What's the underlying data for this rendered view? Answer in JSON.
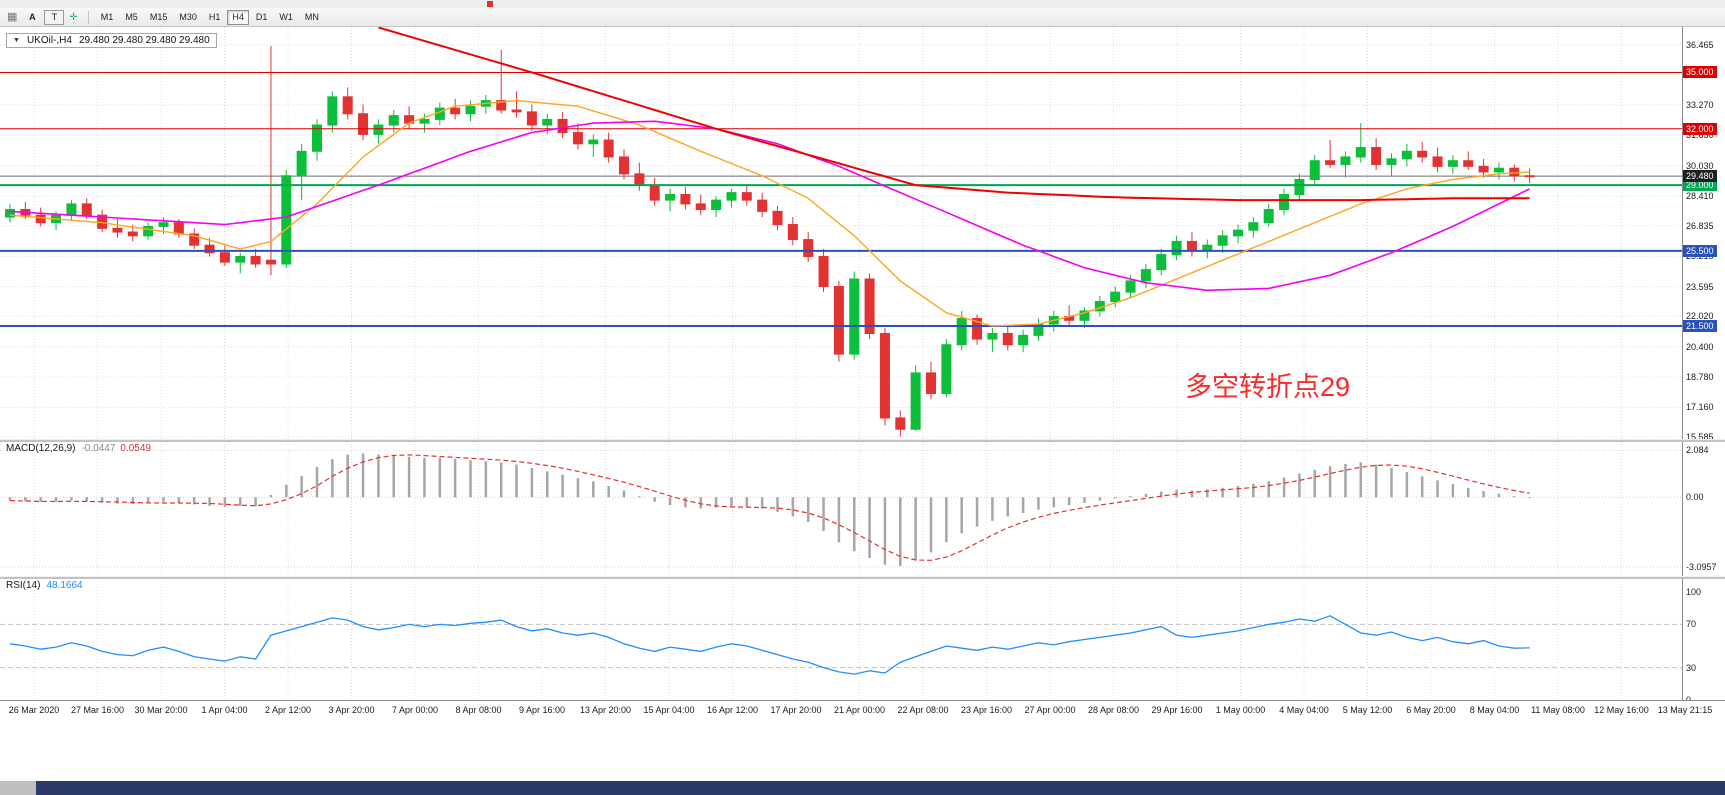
{
  "icons": {
    "grid": "▦",
    "crosshair": "✛",
    "dropdown": "▼"
  },
  "toolbar": {
    "left": [
      {
        "label": "A"
      },
      {
        "label": "T"
      }
    ],
    "timeframes": [
      {
        "label": "M1",
        "active": false
      },
      {
        "label": "M5",
        "active": false
      },
      {
        "label": "M15",
        "active": false
      },
      {
        "label": "M30",
        "active": false
      },
      {
        "label": "H1",
        "active": false
      },
      {
        "label": "H4",
        "active": true
      },
      {
        "label": "D1",
        "active": false
      },
      {
        "label": "W1",
        "active": false
      },
      {
        "label": "MN",
        "active": false
      }
    ]
  },
  "chart": {
    "header": {
      "symbol": "UKOil-,H4",
      "ohlc": "29.480 29.480 29.480 29.480"
    },
    "annotation": {
      "text": "多空转折点29",
      "color": "#F72B2B"
    }
  },
  "panels": {
    "macd": {
      "title": "MACD(12,26,9)",
      "value_main": "-0.0447",
      "value_signal": "0.0549",
      "ticks": [
        "2.084",
        "0.00",
        "-3.0957"
      ]
    },
    "rsi": {
      "title": "RSI(14)",
      "value": "48.1664",
      "ticks": [
        "100",
        "70",
        "30",
        "0"
      ],
      "levels": [
        70,
        30
      ]
    }
  },
  "chart_data": {
    "type": "candlestick",
    "symbol": "UKOil",
    "timeframe": "H4",
    "price_axis": {
      "min": 15.48,
      "max": 37.42,
      "tick_labels": [
        "36.465",
        "33.270",
        "31.650",
        "30.030",
        "28.410",
        "26.835",
        "25.215",
        "23.595",
        "22.020",
        "20.400",
        "18.780",
        "17.160",
        "15.585"
      ]
    },
    "levels": [
      {
        "value": 35.0,
        "label": "35.000",
        "color": "#DC0000",
        "line_width": 1
      },
      {
        "value": 32.0,
        "label": "32.000",
        "color": "#DC0000",
        "line_width": 1
      },
      {
        "value": 29.0,
        "label": "29.000",
        "color": "#00A651",
        "line_width": 2
      },
      {
        "value": 25.5,
        "label": "25.500",
        "color": "#2A52BE",
        "line_width": 2
      },
      {
        "value": 21.5,
        "label": "21.500",
        "color": "#2A52BE",
        "line_width": 2
      }
    ],
    "current_price": {
      "value": 29.48,
      "label": "29.480",
      "badge_color": "#1C1F24",
      "line_color": "#6E6E6E"
    },
    "colors": {
      "up": "#0DBE3A",
      "down": "#E23232",
      "grid": "#DCDCDC",
      "macd_hist": "#A6A6A6",
      "macd_signal": "#E23232",
      "rsi_line": "#1E90FF",
      "rsi_level": "#C0C0C0"
    },
    "candles": [
      [
        27.3,
        28.0,
        27.0,
        27.7
      ],
      [
        27.7,
        28.1,
        27.2,
        27.4
      ],
      [
        27.4,
        27.8,
        26.8,
        27.0
      ],
      [
        27.0,
        27.6,
        26.6,
        27.4
      ],
      [
        27.4,
        28.2,
        27.1,
        28.0
      ],
      [
        28.0,
        28.3,
        27.2,
        27.4
      ],
      [
        27.4,
        27.7,
        26.5,
        26.7
      ],
      [
        26.7,
        27.2,
        26.2,
        26.5
      ],
      [
        26.5,
        26.9,
        26.0,
        26.3
      ],
      [
        26.3,
        27.0,
        26.1,
        26.8
      ],
      [
        26.8,
        27.3,
        26.4,
        27.0
      ],
      [
        27.0,
        27.2,
        26.2,
        26.4
      ],
      [
        26.4,
        26.7,
        25.6,
        25.8
      ],
      [
        25.8,
        26.2,
        25.2,
        25.4
      ],
      [
        25.4,
        25.8,
        24.7,
        24.9
      ],
      [
        24.9,
        25.4,
        24.3,
        25.2
      ],
      [
        25.2,
        25.6,
        24.6,
        24.8
      ],
      [
        25.0,
        36.4,
        24.2,
        24.8
      ],
      [
        24.8,
        29.8,
        24.6,
        29.5
      ],
      [
        29.5,
        31.2,
        28.2,
        30.8
      ],
      [
        30.8,
        32.5,
        30.3,
        32.2
      ],
      [
        32.2,
        34.0,
        31.8,
        33.7
      ],
      [
        33.7,
        34.2,
        32.5,
        32.8
      ],
      [
        32.8,
        33.3,
        31.4,
        31.7
      ],
      [
        31.7,
        32.5,
        31.2,
        32.2
      ],
      [
        32.2,
        33.0,
        31.8,
        32.7
      ],
      [
        32.7,
        33.2,
        32.0,
        32.3
      ],
      [
        32.3,
        32.8,
        31.8,
        32.5
      ],
      [
        32.5,
        33.4,
        32.2,
        33.1
      ],
      [
        33.1,
        33.6,
        32.5,
        32.8
      ],
      [
        32.8,
        33.5,
        32.4,
        33.2
      ],
      [
        33.2,
        33.8,
        32.8,
        33.5
      ],
      [
        33.5,
        36.2,
        32.8,
        33.0
      ],
      [
        33.0,
        34.0,
        32.6,
        32.9
      ],
      [
        32.9,
        33.3,
        31.9,
        32.2
      ],
      [
        32.2,
        32.8,
        31.7,
        32.5
      ],
      [
        32.5,
        32.9,
        31.5,
        31.8
      ],
      [
        31.8,
        32.3,
        30.9,
        31.2
      ],
      [
        31.2,
        31.7,
        30.5,
        31.4
      ],
      [
        31.4,
        31.8,
        30.2,
        30.5
      ],
      [
        30.5,
        30.9,
        29.3,
        29.6
      ],
      [
        29.6,
        30.2,
        28.7,
        29.0
      ],
      [
        29.0,
        29.4,
        27.9,
        28.2
      ],
      [
        28.2,
        28.8,
        27.6,
        28.5
      ],
      [
        28.5,
        28.9,
        27.7,
        28.0
      ],
      [
        28.0,
        28.5,
        27.4,
        27.7
      ],
      [
        27.7,
        28.4,
        27.3,
        28.2
      ],
      [
        28.2,
        28.8,
        27.8,
        28.6
      ],
      [
        28.6,
        29.0,
        27.9,
        28.2
      ],
      [
        28.2,
        28.6,
        27.3,
        27.6
      ],
      [
        27.6,
        27.9,
        26.6,
        26.9
      ],
      [
        26.9,
        27.3,
        25.8,
        26.1
      ],
      [
        26.1,
        26.5,
        24.9,
        25.2
      ],
      [
        25.2,
        25.6,
        23.3,
        23.6
      ],
      [
        23.6,
        23.9,
        19.6,
        20.0
      ],
      [
        20.0,
        24.4,
        19.7,
        24.0
      ],
      [
        24.0,
        24.3,
        20.8,
        21.1
      ],
      [
        21.1,
        21.4,
        16.2,
        16.6
      ],
      [
        16.6,
        17.0,
        15.6,
        16.0
      ],
      [
        16.0,
        19.4,
        15.9,
        19.0
      ],
      [
        19.0,
        19.6,
        17.6,
        17.9
      ],
      [
        17.9,
        20.8,
        17.7,
        20.5
      ],
      [
        20.5,
        22.3,
        20.2,
        21.9
      ],
      [
        21.9,
        22.1,
        20.5,
        20.8
      ],
      [
        20.8,
        21.4,
        20.1,
        21.1
      ],
      [
        21.1,
        21.5,
        20.2,
        20.5
      ],
      [
        20.5,
        21.3,
        20.1,
        21.0
      ],
      [
        21.0,
        21.9,
        20.7,
        21.6
      ],
      [
        21.6,
        22.3,
        21.2,
        22.0
      ],
      [
        22.0,
        22.6,
        21.5,
        21.8
      ],
      [
        21.8,
        22.5,
        21.4,
        22.3
      ],
      [
        22.3,
        23.1,
        22.0,
        22.8
      ],
      [
        22.8,
        23.6,
        22.5,
        23.3
      ],
      [
        23.3,
        24.2,
        23.0,
        23.9
      ],
      [
        23.9,
        24.8,
        23.5,
        24.5
      ],
      [
        24.5,
        25.6,
        24.2,
        25.3
      ],
      [
        25.3,
        26.3,
        25.0,
        26.0
      ],
      [
        26.0,
        26.5,
        25.2,
        25.5
      ],
      [
        25.5,
        26.1,
        25.1,
        25.8
      ],
      [
        25.8,
        26.6,
        25.4,
        26.3
      ],
      [
        26.3,
        26.9,
        25.9,
        26.6
      ],
      [
        26.6,
        27.3,
        26.2,
        27.0
      ],
      [
        27.0,
        28.0,
        26.8,
        27.7
      ],
      [
        27.7,
        28.8,
        27.4,
        28.5
      ],
      [
        28.5,
        29.6,
        28.2,
        29.3
      ],
      [
        29.3,
        30.6,
        29.0,
        30.3
      ],
      [
        30.3,
        31.4,
        29.9,
        30.1
      ],
      [
        30.1,
        30.8,
        29.4,
        30.5
      ],
      [
        30.5,
        32.3,
        30.2,
        31.0
      ],
      [
        31.0,
        31.5,
        29.8,
        30.1
      ],
      [
        30.1,
        30.7,
        29.5,
        30.4
      ],
      [
        30.4,
        31.2,
        30.0,
        30.8
      ],
      [
        30.8,
        31.3,
        30.2,
        30.5
      ],
      [
        30.5,
        31.0,
        29.7,
        30.0
      ],
      [
        30.0,
        30.6,
        29.6,
        30.3
      ],
      [
        30.3,
        30.8,
        29.8,
        30.0
      ],
      [
        30.0,
        30.4,
        29.4,
        29.7
      ],
      [
        29.7,
        30.2,
        29.3,
        29.9
      ],
      [
        29.9,
        30.1,
        29.2,
        29.5
      ],
      [
        29.5,
        29.9,
        29.1,
        29.48
      ]
    ],
    "moving_averages": [
      {
        "name": "fast-ma",
        "color": "#FFA51E",
        "width": 1.4,
        "anchors": [
          [
            0,
            27.4
          ],
          [
            6,
            27.0
          ],
          [
            12,
            26.3
          ],
          [
            15,
            25.6
          ],
          [
            17,
            26.0
          ],
          [
            20,
            28.0
          ],
          [
            23,
            30.5
          ],
          [
            26,
            32.3
          ],
          [
            29,
            33.2
          ],
          [
            33,
            33.5
          ],
          [
            37,
            33.2
          ],
          [
            41,
            32.2
          ],
          [
            45,
            30.8
          ],
          [
            49,
            29.5
          ],
          [
            52,
            28.3
          ],
          [
            55,
            26.3
          ],
          [
            58,
            23.9
          ],
          [
            61,
            22.2
          ],
          [
            64,
            21.5
          ],
          [
            67,
            21.6
          ],
          [
            70,
            22.2
          ],
          [
            73,
            23.0
          ],
          [
            76,
            24.0
          ],
          [
            79,
            25.0
          ],
          [
            82,
            26.0
          ],
          [
            85,
            27.0
          ],
          [
            88,
            28.0
          ],
          [
            91,
            28.8
          ],
          [
            94,
            29.3
          ],
          [
            97,
            29.6
          ],
          [
            99,
            29.7
          ]
        ]
      },
      {
        "name": "medium-ma",
        "color": "#F400F4",
        "width": 1.6,
        "anchors": [
          [
            0,
            27.6
          ],
          [
            8,
            27.2
          ],
          [
            14,
            26.9
          ],
          [
            18,
            27.3
          ],
          [
            24,
            29.0
          ],
          [
            30,
            30.8
          ],
          [
            34,
            31.8
          ],
          [
            38,
            32.3
          ],
          [
            42,
            32.4
          ],
          [
            46,
            32.0
          ],
          [
            50,
            31.2
          ],
          [
            54,
            30.0
          ],
          [
            58,
            28.6
          ],
          [
            62,
            27.2
          ],
          [
            66,
            25.8
          ],
          [
            70,
            24.6
          ],
          [
            74,
            23.8
          ],
          [
            78,
            23.4
          ],
          [
            82,
            23.5
          ],
          [
            86,
            24.2
          ],
          [
            90,
            25.4
          ],
          [
            94,
            26.8
          ],
          [
            97,
            28.0
          ],
          [
            99,
            28.8
          ]
        ]
      },
      {
        "name": "slow-ma",
        "color": "#F00000",
        "width": 2,
        "anchors": [
          [
            24,
            37.4
          ],
          [
            34,
            35.0
          ],
          [
            46,
            32.0
          ],
          [
            59,
            29.0
          ],
          [
            65,
            28.6
          ],
          [
            72,
            28.35
          ],
          [
            80,
            28.2
          ],
          [
            88,
            28.2
          ],
          [
            94,
            28.3
          ],
          [
            99,
            28.3
          ]
        ]
      }
    ],
    "macd": {
      "range": [
        -3.5,
        2.5
      ],
      "hist": [
        -0.15,
        -0.18,
        -0.22,
        -0.2,
        -0.15,
        -0.18,
        -0.25,
        -0.28,
        -0.3,
        -0.25,
        -0.2,
        -0.25,
        -0.32,
        -0.38,
        -0.42,
        -0.38,
        -0.4,
        0.1,
        0.55,
        0.95,
        1.35,
        1.7,
        1.9,
        1.95,
        1.9,
        1.85,
        1.8,
        1.75,
        1.75,
        1.7,
        1.65,
        1.6,
        1.55,
        1.45,
        1.3,
        1.15,
        1.0,
        0.85,
        0.7,
        0.5,
        0.3,
        0.05,
        -0.2,
        -0.35,
        -0.45,
        -0.5,
        -0.45,
        -0.4,
        -0.42,
        -0.5,
        -0.65,
        -0.85,
        -1.1,
        -1.5,
        -2.0,
        -2.4,
        -2.7,
        -3.0,
        -3.05,
        -2.8,
        -2.45,
        -2.0,
        -1.6,
        -1.3,
        -1.05,
        -0.85,
        -0.7,
        -0.55,
        -0.45,
        -0.35,
        -0.25,
        -0.15,
        -0.05,
        0.05,
        0.15,
        0.25,
        0.33,
        0.3,
        0.34,
        0.42,
        0.5,
        0.6,
        0.72,
        0.88,
        1.05,
        1.22,
        1.38,
        1.48,
        1.55,
        1.45,
        1.3,
        1.12,
        0.93,
        0.75,
        0.58,
        0.42,
        0.28,
        0.16,
        0.05,
        -0.04
      ]
    },
    "rsi": {
      "range": [
        0,
        100
      ],
      "values": [
        52,
        50,
        47,
        49,
        53,
        50,
        45,
        42,
        41,
        46,
        49,
        45,
        40,
        38,
        36,
        40,
        38,
        60,
        64,
        68,
        72,
        76,
        74,
        68,
        65,
        67,
        70,
        68,
        70,
        69,
        71,
        72,
        74,
        68,
        64,
        66,
        62,
        60,
        62,
        58,
        52,
        48,
        45,
        49,
        47,
        45,
        49,
        52,
        50,
        46,
        42,
        38,
        35,
        30,
        26,
        24,
        27,
        25,
        35,
        40,
        45,
        50,
        48,
        46,
        49,
        47,
        50,
        53,
        51,
        54,
        56,
        58,
        60,
        62,
        65,
        68,
        60,
        58,
        60,
        62,
        64,
        67,
        70,
        72,
        75,
        73,
        78,
        70,
        62,
        60,
        63,
        58,
        55,
        58,
        54,
        52,
        55,
        50,
        48,
        48.2
      ]
    },
    "time_labels": [
      "26 Mar 2020",
      "27 Mar 16:00",
      "30 Mar 20:00",
      "1 Apr 04:00",
      "2 Apr 12:00",
      "3 Apr 20:00",
      "7 Apr 00:00",
      "8 Apr 08:00",
      "9 Apr 16:00",
      "13 Apr 20:00",
      "15 Apr 04:00",
      "16 Apr 12:00",
      "17 Apr 20:00",
      "21 Apr 00:00",
      "22 Apr 08:00",
      "23 Apr 16:00",
      "27 Apr 00:00",
      "28 Apr 08:00",
      "29 Apr 16:00",
      "1 May 00:00",
      "4 May 04:00",
      "5 May 12:00",
      "6 May 20:00",
      "8 May 04:00",
      "11 May 08:00",
      "12 May 16:00",
      "13 May 21:15"
    ]
  }
}
